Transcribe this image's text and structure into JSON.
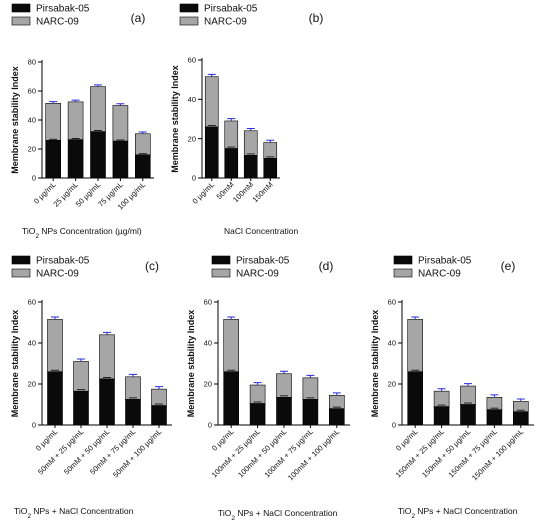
{
  "colors": {
    "series1": "#0a0a0a",
    "series2": "#a6a6a6",
    "error_series2": "#2a2ad6"
  },
  "chart_data": [
    {
      "type": "bar",
      "stacked": true,
      "panel_label": "(a)",
      "legend": [
        "Pirsabak-05",
        "NARC-09"
      ],
      "ylabel": "Membrane stability  Index",
      "xlabel_prefix": "TiO",
      "xlabel_sub": "2",
      "xlabel_suffix": "  NPs Concentration (µg/ml)",
      "categories": [
        "0 µg/mL",
        "25 µg/mL",
        "50 µg/mL",
        "75 µg/mL",
        "100 µg/mL"
      ],
      "ylim": [
        0,
        80
      ],
      "yticks": [
        "0",
        "20",
        "40",
        "60",
        "80"
      ],
      "series": [
        {
          "name": "Pirsabak-05",
          "values": [
            26,
            26.5,
            32,
            25.5,
            16
          ]
        },
        {
          "name": "NARC-09",
          "values": [
            25.5,
            26,
            31,
            24.5,
            14.5
          ]
        }
      ]
    },
    {
      "type": "bar",
      "stacked": true,
      "panel_label": "(b)",
      "legend": [
        "Pirsabak-05",
        "NARC-09"
      ],
      "ylabel": "Membrane stability  Index",
      "xlabel_prefix": "NaCl Concentration",
      "xlabel_sub": "",
      "xlabel_suffix": "",
      "categories": [
        "0 µg/mL",
        "50mM",
        "100mM",
        "150mM"
      ],
      "ylim": [
        0,
        60
      ],
      "yticks": [
        "0",
        "20",
        "40",
        "60"
      ],
      "series": [
        {
          "name": "Pirsabak-05",
          "values": [
            26,
            15,
            11.5,
            10
          ]
        },
        {
          "name": "NARC-09",
          "values": [
            25.5,
            14,
            12.5,
            8
          ]
        }
      ]
    },
    {
      "type": "bar",
      "stacked": true,
      "panel_label": "(c)",
      "legend": [
        "Pirsabak-05",
        "NARC-09"
      ],
      "ylabel": "Membrane stability  Index",
      "xlabel_prefix": "TiO",
      "xlabel_sub": "2",
      "xlabel_suffix": "  NPs + NaCl Concentration",
      "categories": [
        "0 µg/mL",
        "50mM + 25 µg/mL",
        "50mM + 50 µg/mL",
        "50mM + 75 µg/mL",
        "50mM + 100 µg/mL"
      ],
      "ylim": [
        0,
        60
      ],
      "yticks": [
        "0",
        "20",
        "40",
        "60"
      ],
      "series": [
        {
          "name": "Pirsabak-05",
          "values": [
            26,
            16.5,
            22.5,
            12.5,
            9.5
          ]
        },
        {
          "name": "NARC-09",
          "values": [
            25.5,
            14.5,
            21.5,
            11,
            8
          ]
        }
      ]
    },
    {
      "type": "bar",
      "stacked": true,
      "panel_label": "(d)",
      "legend": [
        "Pirsabak-05",
        "NARC-09"
      ],
      "ylabel": "Membrane stability  Index",
      "xlabel_prefix": "TiO",
      "xlabel_sub": "2",
      "xlabel_suffix": "  NPs + NaCl Concentration",
      "categories": [
        "0 µg/mL",
        "100mM + 25 µg/mL",
        "100mM + 50 µg/mL",
        "100mM + 75 µg/mL",
        "100mM + 100 µg/mL"
      ],
      "ylim": [
        0,
        60
      ],
      "yticks": [
        "0",
        "20",
        "40",
        "60"
      ],
      "series": [
        {
          "name": "Pirsabak-05",
          "values": [
            26,
            10.5,
            13.5,
            12.5,
            8
          ]
        },
        {
          "name": "NARC-09",
          "values": [
            25.5,
            9,
            11.5,
            10.5,
            6.5
          ]
        }
      ]
    },
    {
      "type": "bar",
      "stacked": true,
      "panel_label": "(e)",
      "legend": [
        "Pirsabak-05",
        "NARC-09"
      ],
      "ylabel": "Membrane stability  Index",
      "xlabel_prefix": "TiO",
      "xlabel_sub": "2",
      "xlabel_suffix": "  NPs + NaCl Concentration",
      "categories": [
        "0 µg/mL",
        "150mM + 25 µg/mL",
        "150mM + 50 µg/mL",
        "150mM + 75 µg/mL",
        "150mM + 100 µg/mL"
      ],
      "ylim": [
        0,
        60
      ],
      "yticks": [
        "0",
        "20",
        "40",
        "60"
      ],
      "series": [
        {
          "name": "Pirsabak-05",
          "values": [
            26,
            9,
            10,
            7.5,
            6.5
          ]
        },
        {
          "name": "NARC-09",
          "values": [
            25.5,
            7.5,
            9,
            6,
            5
          ]
        }
      ]
    }
  ]
}
